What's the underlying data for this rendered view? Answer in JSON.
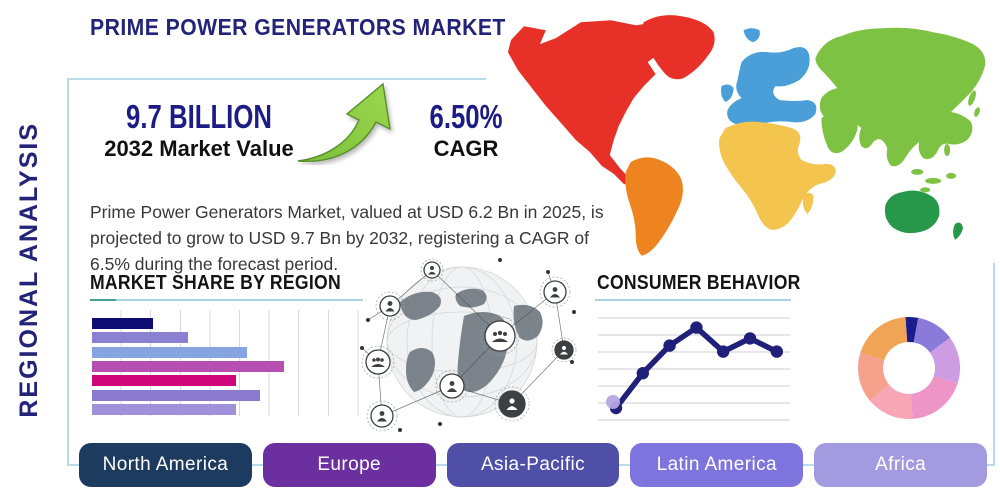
{
  "title": "PRIME POWER GENERATORS MARKET",
  "side_label": "REGIONAL ANALYSIS",
  "stats": {
    "value": "9.7 BILLION",
    "value_label": "2032 Market Value",
    "cagr": "6.50%",
    "cagr_label": "CAGR"
  },
  "description": "Prime Power Generators Market, valued at USD 6.2 Bn in 2025, is projected to grow to USD 9.7 Bn by 2032, registering a CAGR of 6.5% during the forecast period.",
  "sections": {
    "market_share_title": "MARKET SHARE BY REGION",
    "consumer_behavior_title": "CONSUMER BEHAVIOR"
  },
  "region_buttons": [
    {
      "label": "North America",
      "color": "#1d3b5e"
    },
    {
      "label": "Europe",
      "color": "#6b2f9f"
    },
    {
      "label": "Asia-Pacific",
      "color": "#4f4fa8"
    },
    {
      "label": "Latin America",
      "color": "#7d75dd"
    },
    {
      "label": "Africa",
      "color": "#a39bdf"
    }
  ],
  "world_map_regions": [
    {
      "name": "North America",
      "color": "#e73128"
    },
    {
      "name": "Greenland",
      "color": "#e73128"
    },
    {
      "name": "South America",
      "color": "#ee8420"
    },
    {
      "name": "Europe",
      "color": "#4b9fd9"
    },
    {
      "name": "Africa",
      "color": "#f3c44e"
    },
    {
      "name": "Asia",
      "color": "#7dc242"
    },
    {
      "name": "Australia",
      "color": "#27984a"
    }
  ],
  "chart_data": [
    {
      "type": "bar",
      "title": "MARKET SHARE BY REGION",
      "orientation": "horizontal",
      "values": [
        23,
        36,
        58,
        72,
        54,
        63,
        54
      ],
      "bar_colors": [
        "#0c0c72",
        "#8b80d1",
        "#87a4e2",
        "#b54fb2",
        "#ce0677",
        "#8a7bd0",
        "#a090da"
      ],
      "value_labels_shown": false,
      "grid": "vertical"
    },
    {
      "type": "line",
      "title": "CONSUMER BEHAVIOR",
      "x": [
        1,
        2,
        3,
        4,
        5,
        6,
        7
      ],
      "values": [
        20,
        49,
        72,
        87,
        67,
        78,
        67
      ],
      "line_color": "#20207a",
      "first_point_halo_color": "#b6a6e2",
      "grid": "horizontal",
      "value_labels_shown": false
    },
    {
      "type": "pie",
      "style": "donut",
      "values": [
        4,
        12,
        15,
        19,
        15,
        16,
        19
      ],
      "colors": [
        "#1c1c8f",
        "#8a7ad9",
        "#cd9ce3",
        "#ec95c6",
        "#f7a6b6",
        "#f5a18c",
        "#f0a455"
      ],
      "labels_shown": false
    }
  ],
  "colors": {
    "accent_navy": "#232379",
    "frame_border": "#b9dcec",
    "underline_blue": "#a9d3e4",
    "underline_teal": "#44a089",
    "arrow_green": "#8dc63f",
    "grid_gray": "#d8d8de"
  }
}
